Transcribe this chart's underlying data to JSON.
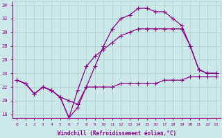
{
  "xlabel": "Windchill (Refroidissement éolien,°C)",
  "x": [
    0,
    1,
    2,
    3,
    4,
    5,
    6,
    7,
    8,
    9,
    10,
    11,
    12,
    13,
    14,
    15,
    16,
    17,
    18,
    19,
    20,
    21,
    22,
    23
  ],
  "line1": [
    23,
    22.5,
    21,
    22,
    21.5,
    20.5,
    20,
    19.5,
    22,
    22,
    22,
    22,
    22.5,
    22.5,
    22.5,
    22.5,
    22.5,
    23,
    23,
    23,
    23.5,
    23.5,
    23.5,
    23.5
  ],
  "line2": [
    23,
    22.5,
    21,
    22,
    21.5,
    20.5,
    17.5,
    19.0,
    22,
    25,
    28,
    30.5,
    32.0,
    32.5,
    33.5,
    33.5,
    33.0,
    33.0,
    32.0,
    31.0,
    28.0,
    24.5,
    24.0,
    24.0
  ],
  "line3": [
    23,
    22.5,
    21,
    22,
    21.5,
    20.5,
    17.5,
    21.5,
    25.0,
    26.5,
    27.5,
    28.5,
    29.5,
    30.0,
    30.5,
    30.5,
    30.5,
    30.5,
    30.5,
    30.5,
    28.0,
    24.5,
    24.0,
    24.0
  ],
  "ylim": [
    17.5,
    34.5
  ],
  "xlim": [
    -0.5,
    23.5
  ],
  "yticks": [
    18,
    20,
    22,
    24,
    26,
    28,
    30,
    32,
    34
  ],
  "xticks": [
    0,
    1,
    2,
    3,
    4,
    5,
    6,
    7,
    8,
    9,
    10,
    11,
    12,
    13,
    14,
    15,
    16,
    17,
    18,
    19,
    20,
    21,
    22,
    23
  ],
  "bg_color": "#cce8e8",
  "grid_color": "#aacece",
  "line_color": "#880088",
  "marker_size": 2.5,
  "lw": 0.9
}
